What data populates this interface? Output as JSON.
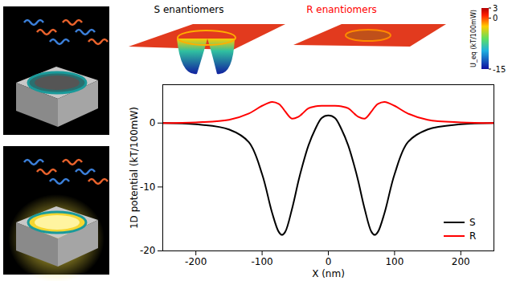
{
  "chart_data": {
    "type": "line",
    "x_label": "X (nm)",
    "y_label": "1D potential (kT/100mW)",
    "x": [
      -250,
      -200,
      -150,
      -120,
      -100,
      -85,
      -75,
      -70,
      -65,
      -55,
      -45,
      -40,
      -30,
      -20,
      -10,
      0,
      10,
      20,
      30,
      40,
      45,
      55,
      65,
      70,
      75,
      85,
      100,
      120,
      150,
      200,
      250
    ],
    "series": [
      {
        "name": "S",
        "color": "#000000",
        "values": [
          0,
          -0.2,
          -1,
          -3,
          -8,
          -14,
          -17,
          -17.5,
          -17,
          -13.5,
          -9,
          -7,
          -3.5,
          -1,
          0.8,
          1.2,
          0.8,
          -1,
          -3.5,
          -7,
          -9,
          -13.5,
          -17,
          -17.5,
          -17,
          -14,
          -8,
          -3,
          -1,
          -0.2,
          0
        ]
      },
      {
        "name": "R",
        "color": "#ff0000",
        "values": [
          0,
          0.1,
          0.5,
          1.5,
          2.7,
          3.3,
          3,
          2.5,
          1.8,
          0.7,
          1,
          1.4,
          2.3,
          2.6,
          2.7,
          2.7,
          2.7,
          2.6,
          2.3,
          1.4,
          1,
          0.7,
          1.8,
          2.5,
          3,
          3.3,
          2.7,
          1.5,
          0.5,
          0.1,
          0
        ]
      }
    ],
    "xlim": [
      -250,
      250
    ],
    "xticks": [
      -200,
      -100,
      0,
      100,
      200
    ],
    "ylim": [
      -20,
      6
    ],
    "yticks": [
      -20,
      -10,
      0
    ],
    "legend": "bottom-right",
    "grid": false
  },
  "figure": {
    "surface_titles": [
      {
        "text": "S enantiomers",
        "color": "#000000"
      },
      {
        "text": "R enantiomers",
        "color": "#ff0000"
      }
    ],
    "colorbar": {
      "label": "U_eq (kT/100mW)",
      "range": [
        -15,
        3
      ],
      "ticks": [
        3,
        0,
        -15
      ]
    }
  }
}
